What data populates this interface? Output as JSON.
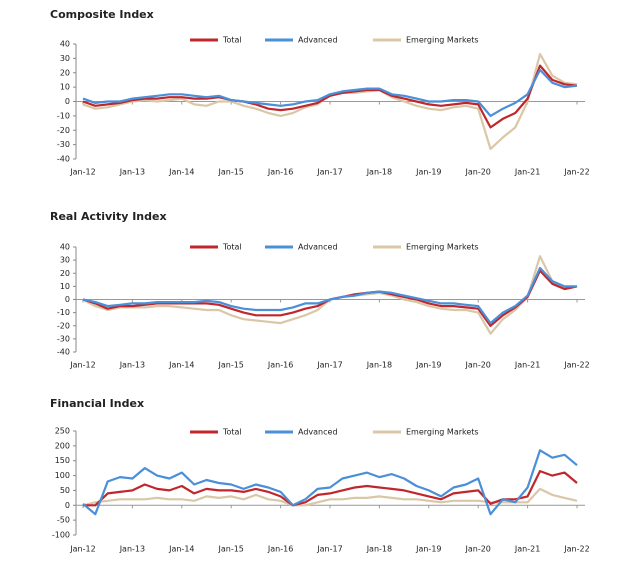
{
  "chart_data": [
    {
      "type": "line",
      "title": "Composite Index",
      "categories": [
        "Jan-12",
        null,
        null,
        null,
        "Jan-13",
        null,
        null,
        null,
        "Jan-14",
        null,
        null,
        null,
        "Jan-15",
        null,
        null,
        null,
        "Jan-16",
        null,
        null,
        null,
        "Jan-17",
        null,
        null,
        null,
        "Jan-18",
        null,
        null,
        null,
        "Jan-19",
        null,
        null,
        null,
        "Jan-20",
        null,
        null,
        null,
        "Jan-21",
        null,
        null,
        null,
        "Jan-22"
      ],
      "ylim": [
        -40,
        40
      ],
      "yticks": [
        -40,
        -30,
        -20,
        -10,
        0,
        10,
        20,
        30,
        40
      ],
      "series": [
        {
          "name": "Total",
          "color": "#c0272d",
          "values": [
            0,
            -3,
            -2,
            -1,
            1,
            2,
            2,
            3,
            3,
            2,
            2,
            3,
            1,
            0,
            -2,
            -5,
            -6,
            -5,
            -3,
            -1,
            4,
            6,
            7,
            8,
            8,
            4,
            2,
            0,
            -2,
            -3,
            -2,
            -1,
            -2,
            -18,
            -12,
            -8,
            2,
            25,
            15,
            12,
            11
          ]
        },
        {
          "name": "Advanced",
          "color": "#4a8fd8",
          "values": [
            2,
            -1,
            0,
            0,
            2,
            3,
            4,
            5,
            5,
            4,
            3,
            4,
            1,
            0,
            -1,
            -2,
            -3,
            -2,
            0,
            1,
            5,
            7,
            8,
            9,
            9,
            5,
            4,
            2,
            0,
            0,
            1,
            1,
            0,
            -10,
            -5,
            -1,
            5,
            22,
            13,
            10,
            11
          ]
        },
        {
          "name": "Emerging Markets",
          "color": "#d9c7a7",
          "values": [
            -2,
            -5,
            -4,
            -2,
            0,
            1,
            0,
            1,
            2,
            -2,
            -3,
            0,
            0,
            -3,
            -5,
            -8,
            -10,
            -8,
            -4,
            -2,
            5,
            6,
            6,
            7,
            8,
            3,
            0,
            -3,
            -5,
            -6,
            -4,
            -3,
            -5,
            -33,
            -25,
            -18,
            0,
            33,
            18,
            13,
            12
          ]
        }
      ]
    },
    {
      "type": "line",
      "title": "Real Activity Index",
      "categories": [
        "Jan-12",
        null,
        null,
        null,
        "Jan-13",
        null,
        null,
        null,
        "Jan-14",
        null,
        null,
        null,
        "Jan-15",
        null,
        null,
        null,
        "Jan-16",
        null,
        null,
        null,
        "Jan-17",
        null,
        null,
        null,
        "Jan-18",
        null,
        null,
        null,
        "Jan-19",
        null,
        null,
        null,
        "Jan-20",
        null,
        null,
        null,
        "Jan-21",
        null,
        null,
        null,
        "Jan-22"
      ],
      "ylim": [
        -40,
        40
      ],
      "yticks": [
        -40,
        -30,
        -20,
        -10,
        0,
        10,
        20,
        30,
        40
      ],
      "series": [
        {
          "name": "Total",
          "color": "#c0272d",
          "values": [
            0,
            -3,
            -7,
            -5,
            -5,
            -4,
            -3,
            -3,
            -3,
            -3,
            -3,
            -4,
            -7,
            -10,
            -12,
            -12,
            -12,
            -10,
            -7,
            -5,
            0,
            2,
            4,
            5,
            6,
            4,
            2,
            0,
            -3,
            -5,
            -5,
            -6,
            -7,
            -20,
            -12,
            -6,
            2,
            22,
            12,
            8,
            10
          ]
        },
        {
          "name": "Advanced",
          "color": "#4a8fd8",
          "values": [
            0,
            -2,
            -5,
            -4,
            -3,
            -3,
            -2,
            -2,
            -2,
            -2,
            -1,
            -2,
            -5,
            -7,
            -8,
            -8,
            -8,
            -6,
            -3,
            -3,
            0,
            2,
            3,
            5,
            6,
            5,
            3,
            1,
            -1,
            -3,
            -3,
            -4,
            -5,
            -18,
            -10,
            -5,
            3,
            24,
            14,
            10,
            10
          ]
        },
        {
          "name": "Emerging Markets",
          "color": "#d9c7a7",
          "values": [
            0,
            -5,
            -8,
            -6,
            -6,
            -6,
            -5,
            -5,
            -6,
            -7,
            -8,
            -8,
            -12,
            -15,
            -16,
            -17,
            -18,
            -15,
            -12,
            -8,
            0,
            2,
            3,
            4,
            5,
            3,
            0,
            -2,
            -5,
            -7,
            -8,
            -8,
            -10,
            -26,
            -15,
            -8,
            2,
            33,
            14,
            8,
            10
          ]
        }
      ]
    },
    {
      "type": "line",
      "title": "Financial Index",
      "categories": [
        "Jan-12",
        null,
        null,
        null,
        "Jan-13",
        null,
        null,
        null,
        "Jan-14",
        null,
        null,
        null,
        "Jan-15",
        null,
        null,
        null,
        "Jan-16",
        null,
        null,
        null,
        "Jan-17",
        null,
        null,
        null,
        "Jan-18",
        null,
        null,
        null,
        "Jan-19",
        null,
        null,
        null,
        "Jan-20",
        null,
        null,
        null,
        "Jan-21",
        null,
        null,
        null,
        "Jan-22"
      ],
      "ylim": [
        -100,
        250
      ],
      "yticks": [
        -100,
        -50,
        0,
        50,
        100,
        150,
        200,
        250
      ],
      "series": [
        {
          "name": "Total",
          "color": "#c0272d",
          "values": [
            0,
            0,
            40,
            45,
            50,
            70,
            55,
            50,
            65,
            40,
            55,
            50,
            50,
            45,
            55,
            45,
            30,
            0,
            10,
            35,
            40,
            50,
            60,
            65,
            60,
            55,
            50,
            40,
            30,
            20,
            40,
            45,
            50,
            5,
            20,
            20,
            30,
            115,
            100,
            110,
            75
          ]
        },
        {
          "name": "Advanced",
          "color": "#4a8fd8",
          "values": [
            5,
            -30,
            80,
            95,
            90,
            125,
            100,
            90,
            110,
            70,
            85,
            75,
            70,
            55,
            70,
            60,
            45,
            0,
            20,
            55,
            60,
            90,
            100,
            110,
            95,
            105,
            90,
            65,
            50,
            30,
            60,
            70,
            90,
            -30,
            20,
            10,
            60,
            185,
            160,
            170,
            135
          ]
        },
        {
          "name": "Emerging Markets",
          "color": "#d9c7a7",
          "values": [
            0,
            10,
            15,
            20,
            20,
            20,
            25,
            20,
            20,
            15,
            30,
            25,
            30,
            20,
            35,
            20,
            15,
            0,
            0,
            10,
            20,
            20,
            25,
            25,
            30,
            25,
            20,
            20,
            15,
            10,
            15,
            15,
            15,
            10,
            10,
            10,
            10,
            55,
            35,
            25,
            15
          ]
        }
      ]
    }
  ]
}
